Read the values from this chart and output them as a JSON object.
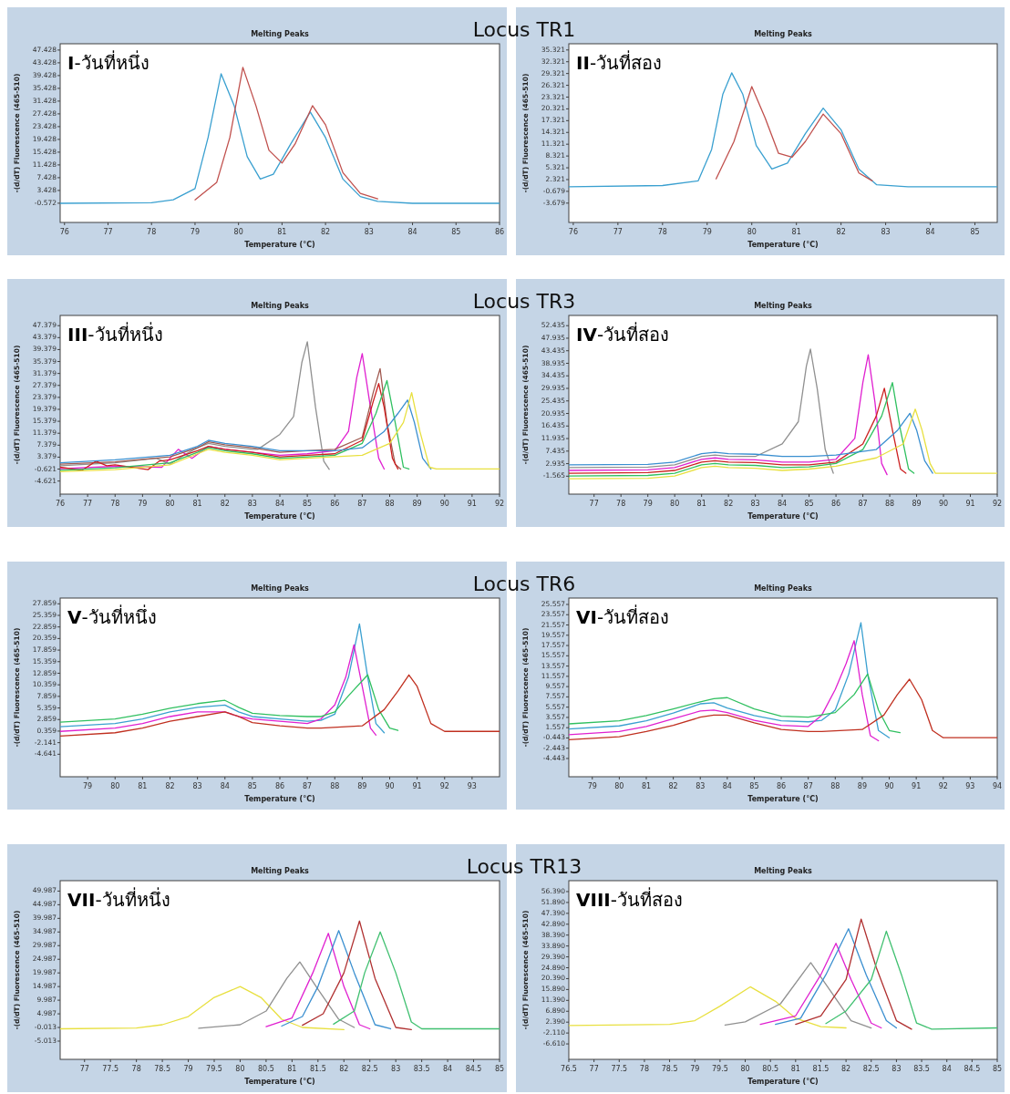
{
  "chart_data": [
    {
      "type": "line",
      "title": "Melting Peaks",
      "subtitle": "I-วันที่หนึ่ง",
      "xlabel": "Temperature (°C)",
      "ylabel": "-(d/dT) Fluorescence (465-510)",
      "annotations": [
        "Locus TR1"
      ],
      "xlim": [
        75.9,
        86
      ],
      "ylim": [
        -6.6,
        49.4
      ],
      "xticks": [
        76,
        77,
        78,
        79,
        80,
        81,
        82,
        83,
        84,
        85,
        86
      ],
      "yticks": [
        -0.572,
        3.428,
        7.428,
        11.428,
        15.428,
        19.428,
        23.428,
        27.428,
        31.428,
        35.428,
        39.428,
        43.428,
        47.428
      ],
      "series": [
        {
          "color": "#3aa0d0",
          "x": [
            75.9,
            78,
            78.5,
            79,
            79.3,
            79.6,
            79.9,
            80.2,
            80.5,
            80.8,
            81.2,
            81.65,
            82,
            82.4,
            82.8,
            83.2,
            84,
            86
          ],
          "values": [
            -0.6,
            -0.4,
            0.5,
            4,
            20,
            40,
            30,
            14,
            7,
            8.5,
            18,
            28,
            20,
            7,
            1.5,
            0,
            -0.6,
            -0.6
          ]
        },
        {
          "color": "#c0504d",
          "x": [
            79,
            79.5,
            79.8,
            80.1,
            80.4,
            80.7,
            81,
            81.3,
            81.7,
            82,
            82.4,
            82.8,
            83.2
          ],
          "values": [
            0.5,
            6,
            20,
            42,
            30,
            16,
            12,
            18,
            30,
            24,
            9,
            2.5,
            0.8
          ]
        }
      ]
    },
    {
      "type": "line",
      "title": "Melting Peaks",
      "subtitle": "II-วันที่สอง",
      "xlabel": "Temperature (°C)",
      "ylabel": "-(d/dT) Fluorescence (465-510)",
      "xlim": [
        75.9,
        85.5
      ],
      "ylim": [
        -8.6,
        36.9
      ],
      "xticks": [
        76,
        77,
        78,
        79,
        80,
        81,
        82,
        83,
        84,
        85
      ],
      "yticks": [
        -3.679,
        -0.679,
        2.321,
        5.321,
        8.321,
        11.321,
        14.321,
        17.321,
        20.321,
        23.321,
        26.321,
        29.321,
        32.321,
        35.321
      ],
      "series": [
        {
          "color": "#3aa0d0",
          "x": [
            75.9,
            78,
            78.8,
            79.1,
            79.35,
            79.55,
            79.8,
            80.1,
            80.45,
            80.8,
            81.2,
            81.6,
            82,
            82.4,
            82.8,
            83.5,
            85.5
          ],
          "values": [
            0.5,
            0.8,
            2,
            10,
            24,
            29.5,
            24,
            11,
            5,
            6.5,
            14,
            20.5,
            15,
            5,
            1,
            0.5,
            0.5
          ]
        },
        {
          "color": "#c0504d",
          "x": [
            79.2,
            79.6,
            80,
            80.3,
            80.6,
            80.9,
            81.2,
            81.6,
            82,
            82.4,
            82.7
          ],
          "values": [
            2.5,
            12,
            26,
            18,
            9,
            8,
            12,
            19,
            14,
            4,
            2
          ]
        }
      ]
    },
    {
      "type": "line",
      "title": "Melting Peaks",
      "subtitle": "III-วันที่หนึ่ง",
      "xlabel": "Temperature (°C)",
      "ylabel": "-(d/dT) Fluorescence (465-510)",
      "annotations": [
        "Locus TR3"
      ],
      "xlim": [
        76,
        92
      ],
      "ylim": [
        -9,
        50.8
      ],
      "xticks": [
        76,
        77,
        78,
        79,
        80,
        81,
        82,
        83,
        84,
        85,
        86,
        87,
        88,
        89,
        90,
        91,
        92
      ],
      "yticks": [
        -4.621,
        -0.621,
        3.379,
        7.379,
        11.379,
        15.379,
        19.379,
        23.379,
        27.379,
        31.379,
        35.379,
        39.379,
        43.379,
        47.379
      ],
      "series": [
        {
          "color": "#909090",
          "x": [
            76,
            78,
            79.5,
            80,
            80.5,
            81,
            81.4,
            82,
            83,
            83.2,
            84,
            84.5,
            84.8,
            85,
            85.3,
            85.6,
            85.8
          ],
          "values": [
            0.5,
            1.5,
            3,
            1,
            4,
            6.5,
            8,
            7,
            6,
            6,
            11,
            17,
            35,
            42,
            20,
            2,
            -0.7
          ]
        },
        {
          "color": "#e020d0",
          "x": [
            76,
            78,
            79.7,
            80.3,
            80.8,
            81.4,
            82,
            83,
            84,
            85,
            86,
            86.5,
            86.8,
            87,
            87.3,
            87.6,
            87.8
          ],
          "values": [
            -0.5,
            0.3,
            0,
            6,
            3,
            7,
            6,
            5,
            4,
            4.5,
            5.5,
            12,
            30,
            38,
            20,
            3,
            -0.6
          ]
        },
        {
          "color": "#a05a50",
          "x": [
            76,
            78,
            80,
            81,
            81.4,
            82,
            83,
            84,
            85,
            86,
            87,
            87.4,
            87.65,
            87.9,
            88.2,
            88.4
          ],
          "values": [
            1,
            1.8,
            3.5,
            6.5,
            8.5,
            7.5,
            6.5,
            5,
            5.5,
            6,
            10,
            25,
            33,
            15,
            1,
            -0.6
          ]
        },
        {
          "color": "#cc2020",
          "x": [
            76,
            76.8,
            77.3,
            77.7,
            78,
            79.2,
            79.6,
            80,
            81,
            81.4,
            82,
            83,
            84,
            85,
            86,
            87,
            87.4,
            87.6,
            87.8,
            88.1,
            88.3
          ],
          "values": [
            0,
            -1,
            2,
            0.5,
            0.8,
            -0.8,
            2,
            2.5,
            5.5,
            7,
            6,
            5,
            3.5,
            4,
            4.5,
            9,
            22,
            28,
            20,
            3,
            -0.6
          ]
        },
        {
          "color": "#30c060",
          "x": [
            76,
            78,
            80,
            81,
            81.4,
            82,
            83,
            84,
            85,
            86,
            87,
            87.5,
            87.9,
            88.2,
            88.5,
            88.7
          ],
          "values": [
            -1,
            -0.2,
            1.5,
            5,
            6.5,
            5.5,
            4.5,
            3,
            3.5,
            4,
            8,
            18,
            29,
            15,
            0,
            -0.6
          ]
        },
        {
          "color": "#3a8fd0",
          "x": [
            76,
            78,
            80,
            81,
            81.4,
            82,
            83,
            84,
            85,
            86,
            87,
            87.8,
            88.3,
            88.65,
            88.9,
            89.2,
            89.5
          ],
          "values": [
            1.5,
            2.5,
            4,
            7,
            9,
            8,
            7,
            5.5,
            5.5,
            5.5,
            6.5,
            12,
            18,
            22.5,
            15,
            3,
            -0.6
          ]
        },
        {
          "color": "#e8e040",
          "x": [
            76,
            78,
            80,
            81,
            81.4,
            82,
            83,
            84,
            85,
            87,
            88,
            88.5,
            88.8,
            89.1,
            89.45,
            89.7,
            92
          ],
          "values": [
            -1.5,
            -0.8,
            0.8,
            4.5,
            6,
            5,
            4,
            2.5,
            3,
            4,
            8,
            15,
            25,
            12,
            0,
            -0.6,
            -0.6
          ]
        }
      ]
    },
    {
      "type": "line",
      "title": "Melting Peaks",
      "subtitle": "IV-วันที่สอง",
      "xlabel": "Temperature (°C)",
      "ylabel": "-(d/dT) Fluorescence (465-510)",
      "xlim": [
        76.06,
        92
      ],
      "ylim": [
        -8,
        56.1
      ],
      "xticks": [
        77,
        78,
        79,
        80,
        81,
        82,
        83,
        84,
        85,
        86,
        87,
        88,
        89,
        90,
        91,
        92
      ],
      "yticks": [
        -1.565,
        2.935,
        7.435,
        11.935,
        16.435,
        20.935,
        25.435,
        29.935,
        34.435,
        38.935,
        43.435,
        47.935,
        52.435
      ],
      "series": [
        {
          "color": "#909090",
          "x": [
            76.06,
            79,
            80,
            81,
            81.5,
            82,
            83,
            84,
            84.6,
            84.9,
            85.05,
            85.3,
            85.6,
            85.9
          ],
          "values": [
            1.5,
            1.7,
            2.5,
            5.5,
            6,
            5.5,
            5.5,
            10,
            18,
            38,
            44,
            30,
            8,
            -0.5
          ]
        },
        {
          "color": "#e020d0",
          "x": [
            76.06,
            79,
            80,
            81,
            81.5,
            82,
            83,
            84,
            85,
            86,
            86.7,
            87,
            87.2,
            87.45,
            87.7,
            87.9
          ],
          "values": [
            0.5,
            0.7,
            1.5,
            4.5,
            5,
            4.5,
            4.3,
            3.5,
            3.5,
            4.5,
            12,
            32,
            42,
            25,
            3,
            -1
          ]
        },
        {
          "color": "#cc2020",
          "x": [
            76.06,
            79,
            80,
            81,
            81.5,
            82,
            83,
            84,
            85,
            86,
            87,
            87.5,
            87.8,
            88.1,
            88.4,
            88.6
          ],
          "values": [
            -0.5,
            -0.3,
            0.5,
            3.5,
            4,
            3.5,
            3.3,
            2.5,
            2.5,
            3.5,
            10,
            20,
            30,
            15,
            1,
            -0.5
          ]
        },
        {
          "color": "#30c060",
          "x": [
            76.06,
            79,
            80,
            81,
            81.5,
            82,
            83,
            84,
            85,
            86,
            87,
            87.7,
            88.1,
            88.4,
            88.7,
            88.9
          ],
          "values": [
            -1.5,
            -1.3,
            -0.5,
            2.5,
            3,
            2.5,
            2.3,
            1.5,
            1.8,
            3,
            8,
            20,
            32,
            15,
            1,
            -0.5
          ]
        },
        {
          "color": "#3a8fd0",
          "x": [
            76.06,
            79,
            80,
            81,
            81.5,
            82,
            83,
            84,
            85,
            86,
            87.5,
            88.3,
            88.75,
            89,
            89.3,
            89.6
          ],
          "values": [
            2.5,
            2.7,
            3.5,
            6.5,
            7,
            6.5,
            6.3,
            5.5,
            5.5,
            6,
            8,
            15,
            21,
            15,
            4,
            -0.5
          ]
        },
        {
          "color": "#e8e040",
          "x": [
            76.06,
            79,
            80,
            81,
            81.5,
            82,
            83,
            84,
            85,
            86,
            87.5,
            88.5,
            88.95,
            89.2,
            89.5,
            89.7,
            92
          ],
          "values": [
            -2.5,
            -2.3,
            -1.5,
            1.5,
            2,
            1.5,
            1.3,
            0.5,
            1,
            2,
            5,
            10,
            22.5,
            15,
            3,
            -0.5,
            -0.5
          ]
        }
      ]
    },
    {
      "type": "line",
      "title": "Melting Peaks",
      "subtitle": "V-วันที่หนึ่ง",
      "xlabel": "Temperature (°C)",
      "ylabel": "-(d/dT) Fluorescence (465-510)",
      "annotations": [
        "Locus TR6"
      ],
      "xlim": [
        78,
        94
      ],
      "ylim": [
        -9.5,
        29.1
      ],
      "xticks": [
        79,
        80,
        81,
        82,
        83,
        84,
        85,
        86,
        87,
        88,
        89,
        90,
        91,
        92,
        93
      ],
      "yticks": [
        -4.641,
        -2.141,
        0.359,
        2.859,
        5.359,
        7.859,
        10.359,
        12.859,
        15.359,
        17.859,
        20.359,
        22.859,
        25.359,
        27.859
      ],
      "series": [
        {
          "color": "#3aa0d0",
          "x": [
            78,
            80,
            81,
            82,
            83,
            84,
            84.5,
            85,
            86,
            87,
            87.5,
            88,
            88.5,
            88.9,
            89.2,
            89.5,
            89.8
          ],
          "values": [
            1.3,
            2,
            3,
            4.5,
            5.5,
            6,
            4.5,
            3.5,
            3,
            2.5,
            2.7,
            4,
            12,
            23.5,
            12,
            2,
            0
          ]
        },
        {
          "color": "#e020d0",
          "x": [
            78,
            80,
            81,
            82,
            83,
            84,
            84.5,
            85,
            86,
            87,
            87.5,
            88,
            88.4,
            88.7,
            89,
            89.3,
            89.5
          ],
          "values": [
            0.3,
            1,
            2,
            3.5,
            4.5,
            4.5,
            3.5,
            3,
            2.5,
            2,
            3,
            6,
            12,
            19,
            10,
            1,
            -0.5
          ]
        },
        {
          "color": "#30c060",
          "x": [
            78,
            80,
            81,
            82,
            83,
            84,
            84.5,
            85,
            86,
            87,
            87.5,
            88,
            88.5,
            89.2,
            89.6,
            90,
            90.3
          ],
          "values": [
            2.3,
            3,
            4,
            5.3,
            6.3,
            7,
            5.5,
            4.2,
            3.7,
            3.5,
            3.5,
            4.5,
            8,
            12.5,
            5,
            1,
            0.5
          ]
        },
        {
          "color": "#c03020",
          "x": [
            78,
            80,
            81,
            82,
            83,
            84,
            84.5,
            85,
            86,
            87,
            87.5,
            89,
            89.8,
            90.3,
            90.7,
            91,
            91.5,
            92,
            94
          ],
          "values": [
            -0.7,
            0,
            1,
            2.5,
            3.5,
            4.5,
            3.5,
            2.2,
            1.5,
            1,
            1,
            1.5,
            5,
            9,
            12.5,
            10,
            2,
            0.3,
            0.3
          ]
        }
      ]
    },
    {
      "type": "line",
      "title": "Melting Peaks",
      "subtitle": "VI-วันที่สอง",
      "xlabel": "Temperature (°C)",
      "ylabel": "-(d/dT) Fluorescence (465-510)",
      "xlim": [
        78.13,
        94
      ],
      "ylim": [
        -8,
        26.8
      ],
      "xticks": [
        79,
        80,
        81,
        82,
        83,
        84,
        85,
        86,
        87,
        88,
        89,
        90,
        91,
        92,
        93,
        94
      ],
      "yticks": [
        -4.443,
        -2.443,
        -0.443,
        1.557,
        3.557,
        5.557,
        7.557,
        9.557,
        11.557,
        13.557,
        15.557,
        17.557,
        19.557,
        21.557,
        23.557,
        25.557
      ],
      "series": [
        {
          "color": "#3aa0d0",
          "x": [
            78.13,
            80,
            81,
            82,
            83,
            83.5,
            84,
            85,
            86,
            87,
            87.5,
            88,
            88.5,
            88.95,
            89.2,
            89.6,
            90
          ],
          "values": [
            1.3,
            1.9,
            2.9,
            4.4,
            6.2,
            6.4,
            5.4,
            3.9,
            2.9,
            2.7,
            3,
            5,
            12,
            22,
            12,
            1,
            -0.4
          ]
        },
        {
          "color": "#e020d0",
          "x": [
            78.13,
            80,
            81,
            82,
            83,
            83.5,
            84,
            85,
            86,
            87,
            87.5,
            88,
            88.4,
            88.7,
            89,
            89.3,
            89.6
          ],
          "values": [
            0.2,
            0.8,
            1.8,
            3.3,
            4.8,
            5,
            4.5,
            3,
            2,
            1.8,
            4,
            9,
            14,
            18.5,
            8,
            0,
            -1
          ]
        },
        {
          "color": "#30c060",
          "x": [
            78.13,
            80,
            81,
            82,
            83,
            83.5,
            84,
            85,
            86,
            87,
            88,
            88.7,
            89.2,
            89.6,
            90,
            90.4
          ],
          "values": [
            2.3,
            2.9,
            3.9,
            5.2,
            6.6,
            7.2,
            7.4,
            5.2,
            3.8,
            3.6,
            4.5,
            8,
            12,
            5,
            1,
            0.6
          ]
        },
        {
          "color": "#c03020",
          "x": [
            78.13,
            80,
            81,
            82,
            83,
            83.5,
            84,
            85,
            86,
            87,
            87.5,
            89,
            89.8,
            90.3,
            90.75,
            91.2,
            91.6,
            92,
            94
          ],
          "values": [
            -0.8,
            -0.2,
            0.8,
            2,
            3.6,
            4,
            4,
            2.5,
            1.2,
            0.8,
            0.8,
            1.2,
            4,
            8,
            11,
            7,
            1,
            -0.4,
            -0.4
          ]
        }
      ]
    },
    {
      "type": "line",
      "title": "Melting Peaks",
      "subtitle": "VII-วันที่หนึ่ง",
      "xlabel": "Temperature (°C)",
      "ylabel": "-(d/dT) Fluorescence (465-510)",
      "annotations": [
        "Locus TR13"
      ],
      "xlim": [
        76.53,
        85
      ],
      "ylim": [
        -11.7,
        53.8
      ],
      "xticks": [
        77,
        77.5,
        78,
        78.5,
        79,
        79.5,
        80,
        80.5,
        81,
        81.5,
        82,
        82.5,
        83,
        83.5,
        84,
        84.5,
        85
      ],
      "yticks": [
        -5.013,
        -0.013,
        4.987,
        9.987,
        14.987,
        19.987,
        24.987,
        29.987,
        34.987,
        39.987,
        44.987,
        49.987
      ],
      "series": [
        {
          "color": "#e8e040",
          "x": [
            76.53,
            78,
            78.5,
            79,
            79.5,
            80,
            80.4,
            80.8,
            81.2,
            82
          ],
          "values": [
            -0.5,
            -0.2,
            1,
            4,
            11,
            15,
            11,
            3,
            0,
            -0.8
          ]
        },
        {
          "color": "#909090",
          "x": [
            79.2,
            80,
            80.5,
            80.9,
            81.15,
            81.5,
            81.9,
            82.2
          ],
          "values": [
            -0.3,
            1,
            6,
            18,
            24,
            14,
            3,
            0
          ]
        },
        {
          "color": "#e020d0",
          "x": [
            80.5,
            81,
            81.4,
            81.7,
            82,
            82.3,
            82.5
          ],
          "values": [
            0.3,
            3.5,
            20,
            34.5,
            15,
            1,
            -0.5
          ]
        },
        {
          "color": "#3a8fd0",
          "x": [
            80.8,
            81.2,
            81.5,
            81.9,
            82.2,
            82.6,
            82.9
          ],
          "values": [
            0.5,
            4,
            15,
            35.5,
            20,
            1,
            -0.5
          ]
        },
        {
          "color": "#b03030",
          "x": [
            81.2,
            81.6,
            82,
            82.3,
            82.6,
            83,
            83.3
          ],
          "values": [
            0.8,
            5,
            20,
            39,
            18,
            0,
            -0.8
          ]
        },
        {
          "color": "#40c070",
          "x": [
            81.8,
            82.2,
            82.4,
            82.7,
            83,
            83.3,
            83.5,
            85
          ],
          "values": [
            1.2,
            6,
            20,
            35,
            20,
            2,
            -0.5,
            -0.5
          ]
        }
      ]
    },
    {
      "type": "line",
      "title": "Melting Peaks",
      "subtitle": "VIII-วันที่สอง",
      "xlabel": "Temperature (°C)",
      "ylabel": "-(d/dT) Fluorescence (465-510)",
      "xlim": [
        76.5,
        85
      ],
      "ylim": [
        -13,
        60.9
      ],
      "xticks": [
        76.5,
        77,
        77.5,
        78,
        78.5,
        79,
        79.5,
        80,
        80.5,
        81,
        81.5,
        82,
        82.5,
        83,
        83.5,
        84,
        84.5,
        85
      ],
      "yticks": [
        {
          "value": -6.61,
          "label": "-6.610"
        },
        {
          "value": -2.11,
          "label": "-2.110"
        },
        {
          "value": 2.39,
          "label": "2.390"
        },
        {
          "value": 6.89,
          "label": "6.890"
        },
        {
          "value": 11.39,
          "label": "11.390"
        },
        {
          "value": 15.89,
          "label": "15.890"
        },
        {
          "value": 20.39,
          "label": "20.390"
        },
        {
          "value": 24.89,
          "label": "24.890"
        },
        {
          "value": 29.39,
          "label": "29.390"
        },
        {
          "value": 33.89,
          "label": "33.890"
        },
        {
          "value": 38.39,
          "label": "38.390"
        },
        {
          "value": 42.89,
          "label": "42.890"
        },
        {
          "value": 47.39,
          "label": "47.390"
        },
        {
          "value": 51.89,
          "label": "51.890"
        },
        {
          "value": 56.39,
          "label": "56.390"
        }
      ],
      "series": [
        {
          "color": "#e8e040",
          "x": [
            76.5,
            78.5,
            79,
            79.5,
            80.1,
            80.6,
            81,
            81.5,
            82
          ],
          "values": [
            1,
            1.5,
            3,
            9,
            17,
            11,
            4,
            0.5,
            0
          ]
        },
        {
          "color": "#909090",
          "x": [
            79.6,
            80,
            80.7,
            81.3,
            81.7,
            82.1,
            82.5
          ],
          "values": [
            1.2,
            2.5,
            10,
            27,
            15,
            3,
            0
          ]
        },
        {
          "color": "#e020d0",
          "x": [
            80.3,
            81,
            81.5,
            81.8,
            82.1,
            82.5,
            82.7
          ],
          "values": [
            1.5,
            5,
            22,
            35,
            20,
            2,
            0
          ]
        },
        {
          "color": "#3a8fd0",
          "x": [
            80.6,
            81.1,
            81.6,
            82.05,
            82.4,
            82.8,
            83
          ],
          "values": [
            1.5,
            4,
            22,
            41,
            22,
            3,
            0
          ]
        },
        {
          "color": "#b03030",
          "x": [
            81,
            81.5,
            82,
            82.3,
            82.6,
            83,
            83.3
          ],
          "values": [
            1.5,
            5,
            20,
            45,
            25,
            3,
            -0.5
          ]
        },
        {
          "color": "#40c070",
          "x": [
            81.6,
            82,
            82.5,
            82.8,
            83.1,
            83.4,
            83.7,
            85
          ],
          "values": [
            1.8,
            7,
            20,
            40,
            22,
            2,
            -0.5,
            0
          ]
        }
      ]
    }
  ]
}
